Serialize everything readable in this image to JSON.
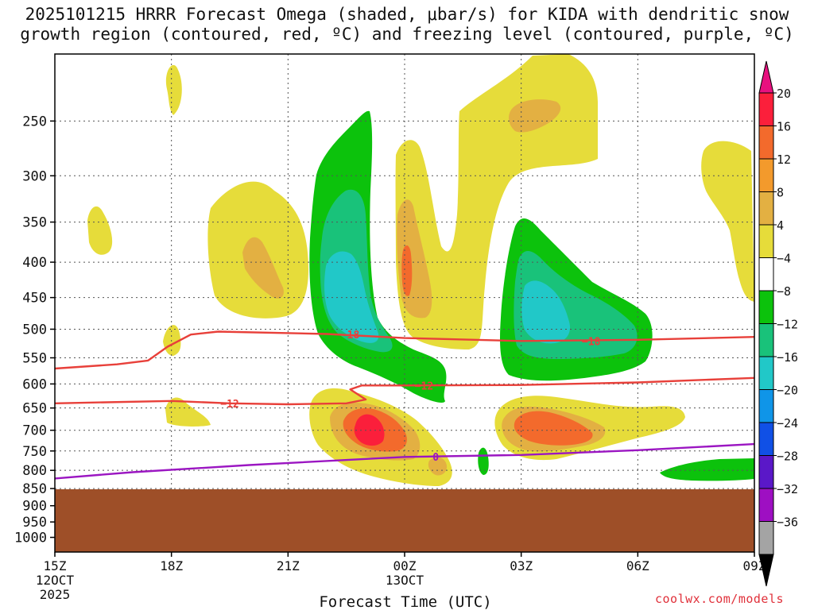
{
  "chart_data": {
    "type": "contour",
    "title_line1": "2025101215 HRRR Forecast Omega (shaded, μbar/s) for KIDA with dendritic snow",
    "title_line2": "growth region (contoured, red, ºC) and freezing level (contoured, purple, ºC)",
    "xlabel": "Forecast Time (UTC)",
    "ylabel": "",
    "x_ticks": [
      {
        "hour": 0,
        "label": "15Z",
        "sub1": "12OCT",
        "sub2": "2025"
      },
      {
        "hour": 3,
        "label": "18Z",
        "sub1": "",
        "sub2": ""
      },
      {
        "hour": 6,
        "label": "21Z",
        "sub1": "",
        "sub2": ""
      },
      {
        "hour": 9,
        "label": "00Z",
        "sub1": "13OCT",
        "sub2": ""
      },
      {
        "hour": 12,
        "label": "03Z",
        "sub1": "",
        "sub2": ""
      },
      {
        "hour": 15,
        "label": "06Z",
        "sub1": "",
        "sub2": ""
      },
      {
        "hour": 18,
        "label": "09Z",
        "sub1": "",
        "sub2": ""
      }
    ],
    "x_range_hours": [
      0,
      18
    ],
    "y_ticks_hpa": [
      250,
      300,
      350,
      400,
      450,
      500,
      550,
      600,
      650,
      700,
      750,
      800,
      850,
      900,
      950,
      1000
    ],
    "y_range_hpa": [
      200,
      1050
    ],
    "ground_top_hpa": 852,
    "colorbar": {
      "labels": [
        "20",
        "16",
        "12",
        "8",
        "4",
        "−4",
        "−8",
        "−12",
        "−16",
        "−20",
        "−24",
        "−28",
        "−32",
        "−36"
      ],
      "colors": [
        "#fb1f3b",
        "#f36a2c",
        "#f39a2c",
        "#e3b042",
        "#e6dc3a",
        "#ffffff",
        "#0cc20c",
        "#19c27a",
        "#21c8c8",
        "#0f95e8",
        "#1050e6",
        "#5a18c8",
        "#9e0fc2",
        "#a4a4a4"
      ],
      "top_color": "#e8117f",
      "bottom_color": "#000000"
    },
    "contours": [
      {
        "name": "-18C dendritic upper",
        "value_label": "−18",
        "color": "#e8403a",
        "points": [
          [
            0,
            570
          ],
          [
            1.6,
            562
          ],
          [
            2.4,
            555
          ],
          [
            2.9,
            530
          ],
          [
            3.5,
            509
          ],
          [
            4.2,
            504
          ],
          [
            7,
            508
          ],
          [
            9,
            515
          ],
          [
            12,
            520
          ],
          [
            15,
            518
          ],
          [
            18,
            513
          ]
        ]
      },
      {
        "name": "-12C dendritic lower",
        "value_label": "−12",
        "color": "#e8403a",
        "points": [
          [
            0,
            640
          ],
          [
            3,
            635
          ],
          [
            4.5,
            640
          ],
          [
            6,
            642
          ],
          [
            7.5,
            640
          ],
          [
            8.0,
            632
          ],
          [
            7.6,
            611
          ],
          [
            7.9,
            603
          ],
          [
            9,
            603
          ],
          [
            12,
            602
          ],
          [
            15,
            597
          ],
          [
            18,
            588
          ]
        ]
      },
      {
        "name": "0C freezing level",
        "value_label": "0",
        "color": "#9b16c2",
        "points": [
          [
            0,
            822
          ],
          [
            2,
            805
          ],
          [
            5,
            786
          ],
          [
            9,
            765
          ],
          [
            12,
            760
          ],
          [
            15,
            748
          ],
          [
            18,
            733
          ]
        ]
      }
    ],
    "omega_regions": [
      {
        "name": "omega-mid-core",
        "value_range": "-16 to -12",
        "center_hours": 8.3,
        "center_hpa": 430
      },
      {
        "name": "omega-east-core",
        "value_range": "-16 to -12",
        "center_hours": 12.6,
        "center_hpa": 490
      },
      {
        "name": "omega-low-max",
        "value_range": "16 to 20",
        "center_hours": 7.9,
        "center_hpa": 705
      }
    ]
  },
  "credit": "coolwx.com/models"
}
